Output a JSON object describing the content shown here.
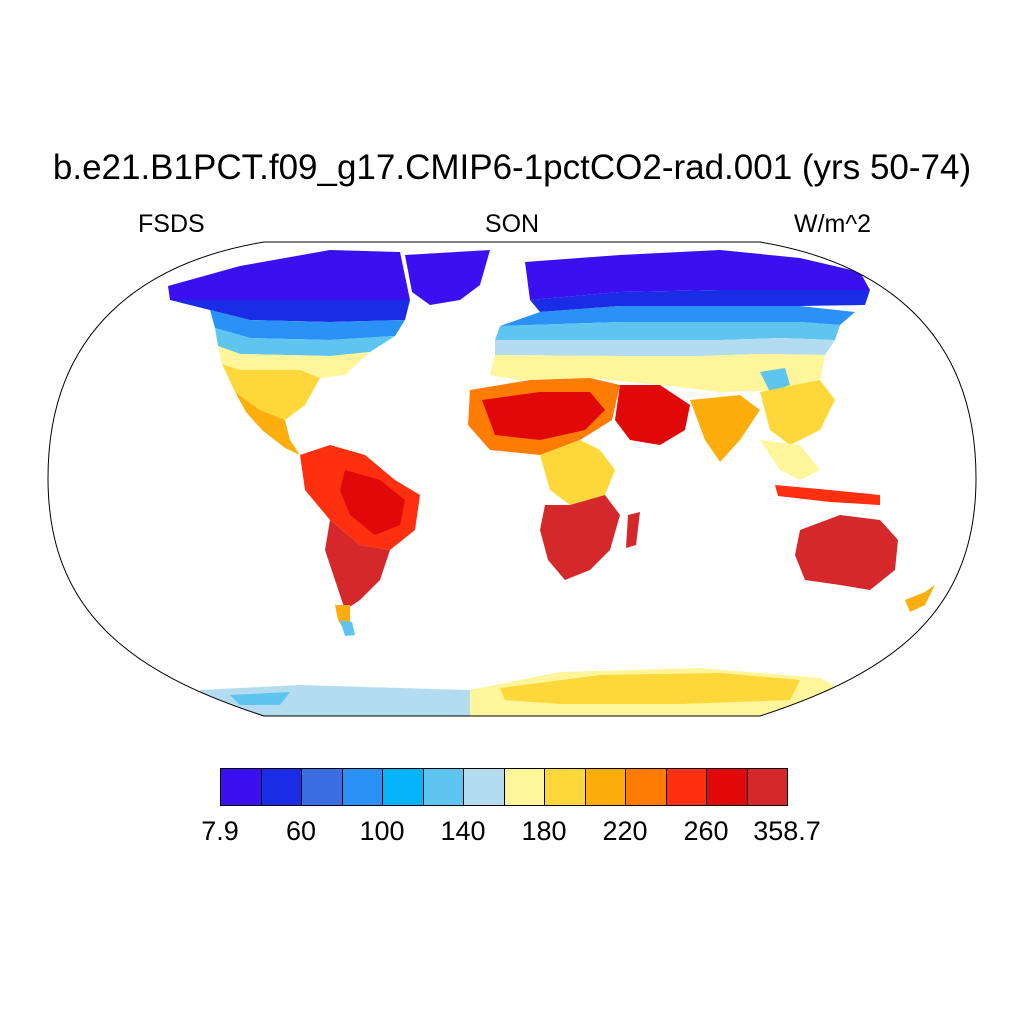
{
  "title": "b.e21.B1PCT.f09_g17.CMIP6-1pctCO2-rad.001 (yrs 50-74)",
  "left_label": "FSDS",
  "center_label": "SON",
  "right_label": "W/m^2",
  "colorbar": {
    "colors": [
      "#3a10f0",
      "#1a2ce6",
      "#3a6ee0",
      "#2a92f6",
      "#06b4fa",
      "#5ec4f0",
      "#b4dcf0",
      "#fff59a",
      "#fed83a",
      "#feae0c",
      "#fe7c04",
      "#fe3010",
      "#e00808",
      "#d4282a"
    ],
    "tick_labels": [
      "7.9",
      "60",
      "100",
      "140",
      "180",
      "220",
      "260",
      "358.7"
    ]
  },
  "chart_data": {
    "type": "heatmap",
    "projection": "Robinson",
    "variable": "FSDS",
    "season": "SON",
    "units": "W/m^2",
    "levels": [
      7.9,
      40,
      60,
      80,
      100,
      120,
      140,
      160,
      180,
      200,
      220,
      240,
      260,
      280,
      358.7
    ],
    "regions": [
      {
        "region": "Antarctica interior",
        "band": "180-200 to 200-220"
      },
      {
        "region": "Antarctic coast (Atlantic/Pacific sector)",
        "band": "140-160 to 160-180"
      },
      {
        "region": "Sahara / Arabia",
        "band": "260-280 to 280-358.7"
      },
      {
        "region": "Southern Africa",
        "band": "280-358.7"
      },
      {
        "region": "Australia",
        "band": "280-358.7"
      },
      {
        "region": "Amazon / South America",
        "band": "240-280"
      },
      {
        "region": "Siberia / Canadian Arctic",
        "band": "7.9-60"
      },
      {
        "region": "Central USA / Mexico",
        "band": "180-240"
      },
      {
        "region": "India / Southeast Asia",
        "band": "180-260"
      }
    ]
  }
}
